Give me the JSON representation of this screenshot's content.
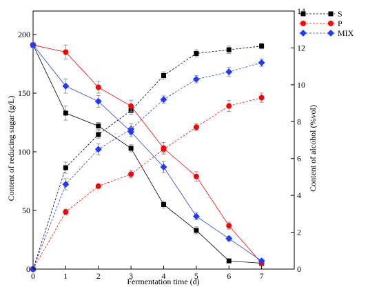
{
  "chart_data": {
    "type": "line",
    "xlabel": "Fermentation time (d)",
    "ylabel_left": "Content of reducing sugar (g/L)",
    "ylabel_right": "Content of alcohol (%vol)",
    "x": [
      0,
      1,
      2,
      3,
      4,
      5,
      6,
      7
    ],
    "xlim": [
      0,
      8
    ],
    "xticks": [
      "0",
      "1",
      "2",
      "3",
      "4",
      "5",
      "6",
      "7"
    ],
    "ylim_left": [
      0,
      220
    ],
    "yticks_left": [
      "0",
      "50",
      "100",
      "150",
      "200"
    ],
    "ylim_right": [
      0,
      14
    ],
    "yticks_right": [
      "0",
      "2",
      "4",
      "6",
      "8",
      "10",
      "12",
      "14"
    ],
    "legend": {
      "position": "top-right",
      "entries": [
        "S",
        "P",
        "MIX"
      ]
    },
    "colors": {
      "S": "#000000",
      "P": "#ff0000",
      "MIX": "#1f3bff"
    },
    "sugar_series": [
      {
        "name": "S",
        "axis": "left",
        "line_style": "solid",
        "values": [
          191,
          133,
          122,
          103,
          55,
          33,
          7,
          5
        ],
        "errors": [
          0,
          6,
          3,
          3,
          3,
          3,
          1,
          1
        ]
      },
      {
        "name": "P",
        "axis": "left",
        "line_style": "solid",
        "values": [
          191,
          185,
          155,
          139,
          103,
          79,
          37,
          5
        ],
        "errors": [
          0,
          6,
          5,
          5,
          5,
          4,
          3,
          1
        ]
      },
      {
        "name": "MIX",
        "axis": "left",
        "line_style": "solid",
        "values": [
          191,
          156,
          143,
          117,
          87,
          45,
          26,
          7
        ],
        "errors": [
          0,
          6,
          5,
          4,
          5,
          3,
          2,
          1
        ]
      }
    ],
    "alcohol_series": [
      {
        "name": "S",
        "axis": "right",
        "line_style": "dashed",
        "values": [
          0,
          5.5,
          7.3,
          8.6,
          10.5,
          11.7,
          11.9,
          12.1
        ],
        "errors": [
          0,
          0.3,
          0.2,
          0.2,
          0.2,
          0.2,
          0.2,
          0.15
        ]
      },
      {
        "name": "P",
        "axis": "right",
        "line_style": "dashed",
        "values": [
          0,
          3.1,
          4.5,
          5.15,
          6.5,
          7.7,
          8.85,
          9.3
        ],
        "errors": [
          0,
          0.15,
          0.1,
          0.2,
          0.2,
          0.2,
          0.3,
          0.25
        ]
      },
      {
        "name": "MIX",
        "axis": "right",
        "line_style": "dashed",
        "values": [
          0,
          4.6,
          6.5,
          7.6,
          9.2,
          10.3,
          10.7,
          11.2
        ],
        "errors": [
          0,
          0.3,
          0.3,
          0.3,
          0.2,
          0.2,
          0.25,
          0.2
        ]
      }
    ]
  }
}
